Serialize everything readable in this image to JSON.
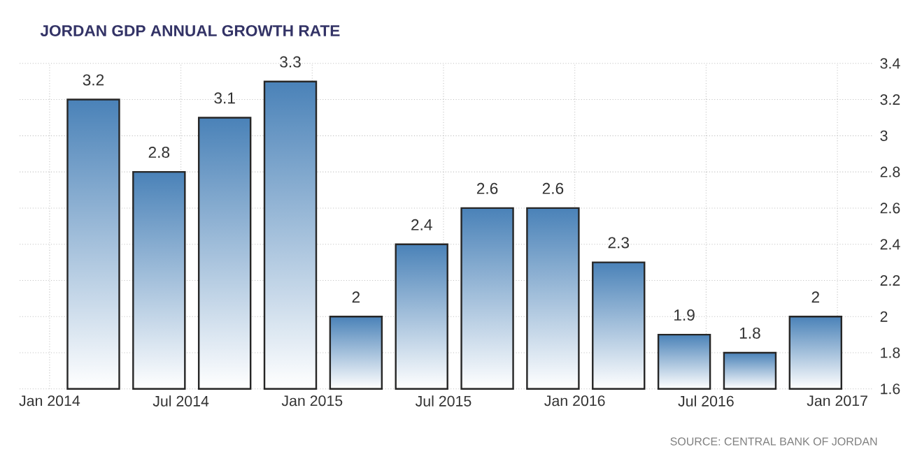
{
  "chart_data": {
    "type": "bar",
    "title": "JORDAN GDP ANNUAL GROWTH RATE",
    "x": [
      "2014-03",
      "2014-06",
      "2014-09",
      "2014-12",
      "2015-03",
      "2015-06",
      "2015-09",
      "2015-12",
      "2016-03",
      "2016-06",
      "2016-09",
      "2016-12"
    ],
    "values": [
      3.2,
      2.8,
      3.1,
      3.3,
      2,
      2.4,
      2.6,
      2.6,
      2.3,
      1.9,
      1.8,
      2
    ],
    "color": "#4a82b8",
    "data_labels": true,
    "grid": true,
    "xlim": [
      "2013-11-20",
      "2017-02-20"
    ],
    "xticks": [
      {
        "value": "2014-01",
        "label": "Jan 2014"
      },
      {
        "value": "2014-07",
        "label": "Jul 2014"
      },
      {
        "value": "2015-01",
        "label": "Jan 2015"
      },
      {
        "value": "2015-07",
        "label": "Jul 2015"
      },
      {
        "value": "2016-01",
        "label": "Jan 2016"
      },
      {
        "value": "2016-07",
        "label": "Jul 2016"
      },
      {
        "value": "2017-01",
        "label": "Jan 2017"
      }
    ],
    "ylim": [
      1.6,
      3.4
    ],
    "yticks": [
      1.6,
      1.8,
      2,
      2.2,
      2.4,
      2.6,
      2.8,
      3,
      3.2,
      3.4
    ],
    "annotations": [
      "SOURCE: CENTRAL BANK OF JORDAN"
    ]
  }
}
